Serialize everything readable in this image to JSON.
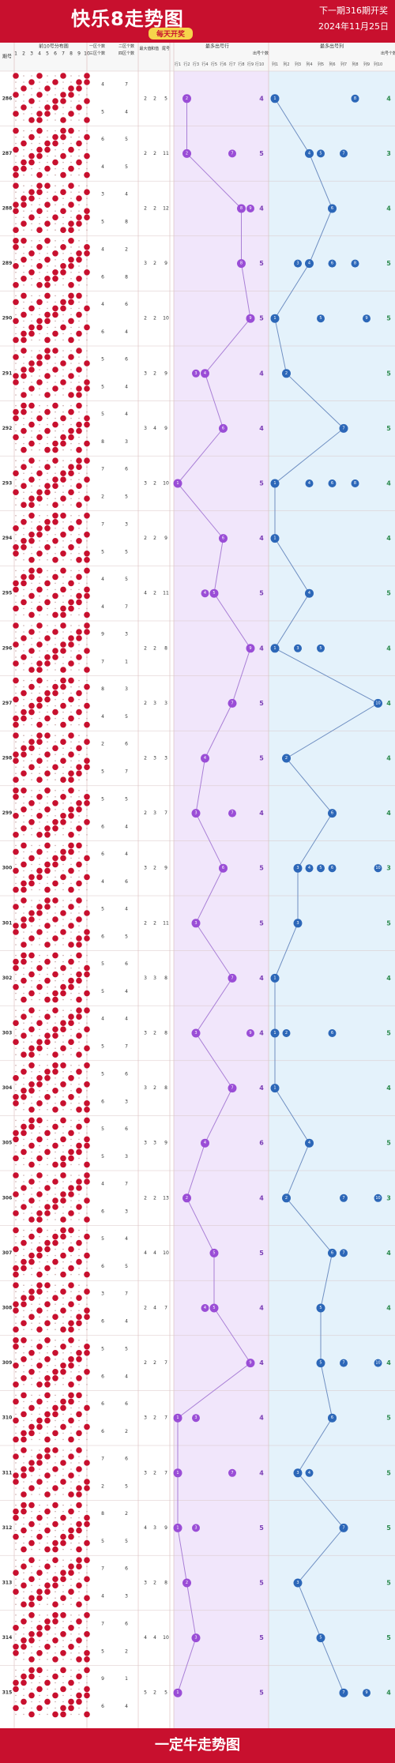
{
  "header": {
    "title": "快乐8走势图",
    "subtitle": "每天开奖",
    "next_draw": "下一期316期开奖",
    "date": "2024年11月25日"
  },
  "footer": {
    "text": "一定牛走势图"
  },
  "columns": {
    "period": "期号",
    "dist": "前10号分布图",
    "dist_nums": [
      "1",
      "2",
      "3",
      "4",
      "5",
      "6",
      "7",
      "8",
      "9",
      "10"
    ],
    "ratio1": "一区个数",
    "ratio2": "二区个数",
    "ratio3": "三区个数",
    "ratio4": "四区个数",
    "max": "最大值",
    "sum": "和值",
    "tail": "尾号",
    "group1": "最多出号行",
    "group2": "最多出号列",
    "count": "出号个数",
    "row_heads": [
      "行1",
      "行2",
      "行3",
      "行4",
      "行5",
      "行6",
      "行7",
      "行8",
      "行9",
      "行10"
    ],
    "col_heads": [
      "列1",
      "列2",
      "列3",
      "列4",
      "列5",
      "列6",
      "列7",
      "列8",
      "列9",
      "列10"
    ]
  },
  "chart_data": {
    "type": "table",
    "periods": [
      "286",
      "287",
      "288",
      "289",
      "290",
      "291",
      "292",
      "293",
      "294",
      "295",
      "296",
      "297",
      "298",
      "299",
      "300",
      "301",
      "302",
      "303",
      "304",
      "305",
      "306",
      "307",
      "308",
      "309",
      "310",
      "311",
      "312",
      "313",
      "314",
      "315"
    ],
    "ratios": [
      [
        4,
        7,
        5,
        4
      ],
      [
        6,
        5,
        4,
        5
      ],
      [
        3,
        4,
        5,
        8
      ],
      [
        4,
        2,
        6,
        8
      ],
      [
        4,
        6,
        6,
        4
      ],
      [
        5,
        6,
        5,
        4
      ],
      [
        5,
        4,
        8,
        3
      ],
      [
        7,
        6,
        2,
        5
      ],
      [
        7,
        3,
        5,
        5
      ],
      [
        4,
        5,
        4,
        7
      ],
      [
        9,
        3,
        7,
        1
      ],
      [
        8,
        3,
        4,
        5
      ],
      [
        2,
        6,
        5,
        7
      ],
      [
        5,
        5,
        6,
        4
      ],
      [
        6,
        4,
        4,
        6
      ],
      [
        5,
        4,
        6,
        5
      ],
      [
        5,
        6,
        5,
        4
      ],
      [
        4,
        4,
        5,
        7
      ],
      [
        5,
        6,
        6,
        3
      ],
      [
        5,
        6,
        5,
        3
      ],
      [
        4,
        7,
        6,
        3
      ],
      [
        5,
        4,
        6,
        5
      ],
      [
        3,
        7,
        6,
        4
      ],
      [
        5,
        5,
        6,
        4
      ],
      [
        6,
        6,
        6,
        2
      ],
      [
        7,
        6,
        2,
        5
      ],
      [
        8,
        2,
        5,
        5
      ],
      [
        7,
        6,
        4,
        3
      ],
      [
        7,
        6,
        5,
        2
      ],
      [
        9,
        1,
        6,
        4
      ]
    ],
    "stats": [
      [
        "2",
        "2",
        "5"
      ],
      [
        "2",
        "2",
        "11"
      ],
      [
        "2",
        "2",
        "12"
      ],
      [
        "3",
        "2",
        "9"
      ],
      [
        "2",
        "2",
        "10"
      ],
      [
        "3",
        "2",
        "9"
      ],
      [
        "3",
        "4",
        "9"
      ],
      [
        "3",
        "2",
        "10"
      ],
      [
        "2",
        "2",
        "9"
      ],
      [
        "4",
        "2",
        "11"
      ],
      [
        "2",
        "2",
        "8"
      ],
      [
        "2",
        "3",
        "3"
      ],
      [
        "2",
        "3",
        "3"
      ],
      [
        "2",
        "3",
        "7"
      ],
      [
        "3",
        "2",
        "9"
      ],
      [
        "2",
        "2",
        "11"
      ],
      [
        "3",
        "3",
        "8"
      ],
      [
        "3",
        "2",
        "8"
      ],
      [
        "3",
        "2",
        "8"
      ],
      [
        "3",
        "3",
        "9"
      ],
      [
        "2",
        "2",
        "13"
      ],
      [
        "4",
        "4",
        "10"
      ],
      [
        "2",
        "4",
        "7"
      ],
      [
        "2",
        "2",
        "7"
      ],
      [
        "3",
        "2",
        "7"
      ],
      [
        "3",
        "2",
        "7"
      ],
      [
        "4",
        "3",
        "9"
      ],
      [
        "3",
        "2",
        "8"
      ],
      [
        "4",
        "4",
        "10"
      ],
      [
        "5",
        "2",
        "5"
      ]
    ],
    "max_row": [
      2,
      2,
      8,
      8,
      9,
      4,
      6,
      1,
      6,
      5,
      9,
      7,
      4,
      3,
      6,
      3,
      7,
      3,
      7,
      4,
      2,
      5,
      5,
      9,
      1,
      1,
      1,
      2,
      3,
      1
    ],
    "max_row_extra": [
      [],
      [
        7
      ],
      [
        9
      ],
      [],
      [],
      [
        3
      ],
      [],
      [],
      [],
      [
        4
      ],
      [],
      [],
      [],
      [
        7
      ],
      [],
      [],
      [],
      [
        9
      ],
      [],
      [],
      [],
      [],
      [
        4
      ],
      [],
      [
        3
      ],
      [
        7
      ],
      [
        3
      ],
      [],
      [],
      []
    ],
    "row_count": [
      4,
      5,
      4,
      5,
      5,
      4,
      4,
      5,
      4,
      5,
      4,
      5,
      5,
      4,
      5,
      5,
      4,
      4,
      4,
      6,
      4,
      5,
      4,
      4,
      4,
      4,
      5,
      5,
      5,
      5
    ],
    "max_col": [
      1,
      4,
      6,
      4,
      1,
      2,
      7,
      1,
      1,
      4,
      1,
      10,
      2,
      6,
      3,
      3,
      1,
      1,
      1,
      4,
      2,
      6,
      5,
      5,
      6,
      3,
      7,
      3,
      5,
      7
    ],
    "max_col_extra": [
      [
        8
      ],
      [
        5,
        7
      ],
      [],
      [
        3,
        6,
        8
      ],
      [
        5,
        9
      ],
      [],
      [],
      [
        4,
        6,
        8
      ],
      [],
      [],
      [
        3,
        5
      ],
      [],
      [],
      [],
      [
        4,
        5,
        6,
        10
      ],
      [],
      [],
      [
        2,
        6
      ],
      [],
      [],
      [
        7,
        10
      ],
      [
        7
      ],
      [],
      [
        7,
        10
      ],
      [],
      [
        4
      ],
      [],
      [],
      [],
      [
        9
      ]
    ],
    "col_count": [
      4,
      3,
      4,
      5,
      5,
      5,
      5,
      4,
      4,
      5,
      4,
      4,
      4,
      4,
      3,
      5,
      4,
      5,
      4,
      5,
      3,
      4,
      4,
      4,
      5,
      5,
      5,
      5,
      5,
      4
    ]
  }
}
